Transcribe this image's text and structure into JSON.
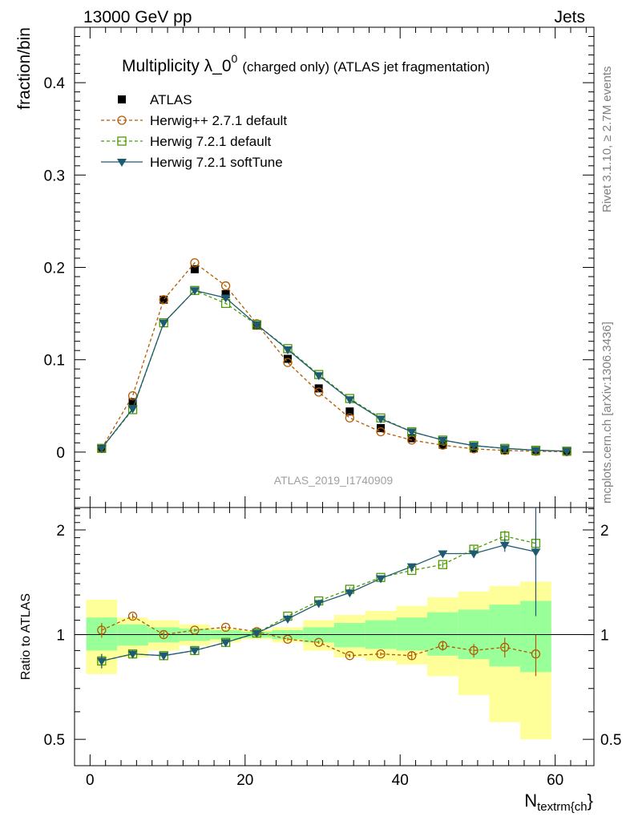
{
  "header": {
    "left": "13000 GeV pp",
    "right": "Jets"
  },
  "side_labels": {
    "rivet": "Rivet 3.1.10, ≥ 2.7M events",
    "mcplots": "mcplots.cern.ch [arXiv:1306.3436]"
  },
  "watermark": "ATLAS_2019_I1740909",
  "chart_data": [
    {
      "type": "line",
      "title": "Multiplicity λ_0",
      "title_sup": "0",
      "title_suffix": "(charged only) (ATLAS jet fragmentation)",
      "ylabel": "fraction/bin",
      "xlim": [
        -2,
        65
      ],
      "ylim": [
        -0.06,
        0.46
      ],
      "yticks": [
        0,
        0.1,
        0.2,
        0.3,
        0.4
      ],
      "ytick_labels": [
        "0",
        "0.1",
        "0.2",
        "0.3",
        "0.4"
      ],
      "x": [
        1.5,
        5.5,
        9.5,
        13.5,
        17.5,
        21.5,
        25.5,
        29.5,
        33.5,
        37.5,
        41.5,
        45.5,
        49.5,
        53.5,
        57.5,
        61.5
      ],
      "series": [
        {
          "name": "ATLAS",
          "style": "data",
          "color": "#000000",
          "values": [
            0.004,
            0.054,
            0.165,
            0.198,
            0.171,
            0.137,
            0.101,
            0.069,
            0.044,
            0.026,
            0.015,
            0.008,
            0.004,
            0.002,
            0.001,
            0.0005
          ]
        },
        {
          "name": "Herwig++ 2.7.1 default",
          "style": "circle",
          "color": "#b35a00",
          "values": [
            0.004,
            0.061,
            0.165,
            0.205,
            0.18,
            0.139,
            0.097,
            0.065,
            0.037,
            0.022,
            0.013,
            0.0075,
            0.0035,
            0.0018,
            0.0009,
            0.0004
          ]
        },
        {
          "name": "Herwig 7.2.1 default",
          "style": "square",
          "color": "#4a9a00",
          "values": [
            0.004,
            0.046,
            0.14,
            0.175,
            0.161,
            0.138,
            0.112,
            0.084,
            0.058,
            0.037,
            0.022,
            0.013,
            0.007,
            0.004,
            0.002,
            0.001
          ]
        },
        {
          "name": "Herwig 7.2.1 softTune",
          "style": "triangle",
          "color": "#1e5b73",
          "values": [
            0.004,
            0.047,
            0.14,
            0.175,
            0.167,
            0.138,
            0.111,
            0.083,
            0.057,
            0.036,
            0.022,
            0.013,
            0.007,
            0.004,
            0.002,
            0.001
          ]
        }
      ]
    },
    {
      "type": "line",
      "ylabel": "Ratio to ATLAS",
      "xlabel": "N",
      "xlabel_sub": "textrm{ch",
      "xlabel_tail": "}",
      "xlim": [
        -2,
        65
      ],
      "ylim": [
        0.42,
        2.32
      ],
      "yticks": [
        0.5,
        1,
        2
      ],
      "ytick_labels": [
        "0.5",
        "1",
        "2"
      ],
      "xticks": [
        0,
        20,
        40,
        60
      ],
      "xtick_labels": [
        "0",
        "20",
        "40",
        "60"
      ],
      "x": [
        1.5,
        5.5,
        9.5,
        13.5,
        17.5,
        21.5,
        25.5,
        29.5,
        33.5,
        37.5,
        41.5,
        45.5,
        49.5,
        53.5,
        57.5
      ],
      "bins": [
        [
          -0.5,
          3.5
        ],
        [
          3.5,
          7.5
        ],
        [
          7.5,
          11.5
        ],
        [
          11.5,
          15.5
        ],
        [
          15.5,
          19.5
        ],
        [
          19.5,
          23.5
        ],
        [
          23.5,
          27.5
        ],
        [
          27.5,
          31.5
        ],
        [
          31.5,
          35.5
        ],
        [
          35.5,
          39.5
        ],
        [
          39.5,
          43.5
        ],
        [
          43.5,
          47.5
        ],
        [
          47.5,
          51.5
        ],
        [
          51.5,
          55.5
        ],
        [
          55.5,
          59.5
        ]
      ],
      "band_stat": [
        [
          0.9,
          1.12
        ],
        [
          0.93,
          1.07
        ],
        [
          0.95,
          1.05
        ],
        [
          0.96,
          1.04
        ],
        [
          0.97,
          1.03
        ],
        [
          0.98,
          1.02
        ],
        [
          0.97,
          1.03
        ],
        [
          0.95,
          1.05
        ],
        [
          0.92,
          1.08
        ],
        [
          0.91,
          1.1
        ],
        [
          0.9,
          1.12
        ],
        [
          0.87,
          1.16
        ],
        [
          0.85,
          1.18
        ],
        [
          0.81,
          1.22
        ],
        [
          0.78,
          1.25
        ]
      ],
      "band_total": [
        [
          0.77,
          1.26
        ],
        [
          0.86,
          1.12
        ],
        [
          0.9,
          1.1
        ],
        [
          0.93,
          1.07
        ],
        [
          0.95,
          1.04
        ],
        [
          0.97,
          1.03
        ],
        [
          0.95,
          1.05
        ],
        [
          0.9,
          1.1
        ],
        [
          0.86,
          1.14
        ],
        [
          0.84,
          1.17
        ],
        [
          0.82,
          1.21
        ],
        [
          0.76,
          1.28
        ],
        [
          0.67,
          1.33
        ],
        [
          0.56,
          1.38
        ],
        [
          0.5,
          1.42
        ]
      ],
      "band_stat_color": "#99ff99",
      "band_total_color": "#ffff99",
      "series": [
        {
          "name": "Herwig++ 2.7.1 default",
          "style": "circle",
          "color": "#b35a00",
          "values": [
            1.03,
            1.13,
            1.0,
            1.03,
            1.05,
            1.02,
            0.97,
            0.95,
            0.87,
            0.88,
            0.87,
            0.93,
            0.9,
            0.92,
            0.88
          ],
          "err": [
            0.05,
            0.02,
            0.02,
            0.01,
            0.01,
            0.01,
            0.01,
            0.01,
            0.01,
            0.01,
            0.02,
            0.03,
            0.04,
            0.06,
            0.12
          ]
        },
        {
          "name": "Herwig 7.2.1 default",
          "style": "square",
          "color": "#4a9a00",
          "values": [
            0.84,
            0.88,
            0.87,
            0.9,
            0.95,
            1.01,
            1.13,
            1.25,
            1.35,
            1.46,
            1.53,
            1.59,
            1.76,
            1.92,
            1.83
          ],
          "err": [
            0.04,
            0.02,
            0.01,
            0.01,
            0.01,
            0.01,
            0.01,
            0.01,
            0.02,
            0.02,
            0.02,
            0.03,
            0.04,
            0.07,
            0.14
          ]
        },
        {
          "name": "Herwig 7.2.1 softTune",
          "style": "triangle",
          "color": "#1e5b73",
          "values": [
            0.84,
            0.88,
            0.87,
            0.9,
            0.95,
            1.01,
            1.11,
            1.23,
            1.32,
            1.45,
            1.57,
            1.71,
            1.71,
            1.81,
            1.73
          ],
          "err": [
            0.04,
            0.02,
            0.01,
            0.01,
            0.01,
            0.01,
            0.01,
            0.01,
            0.02,
            0.02,
            0.02,
            0.03,
            0.05,
            0.08,
            0.6
          ]
        }
      ]
    }
  ]
}
